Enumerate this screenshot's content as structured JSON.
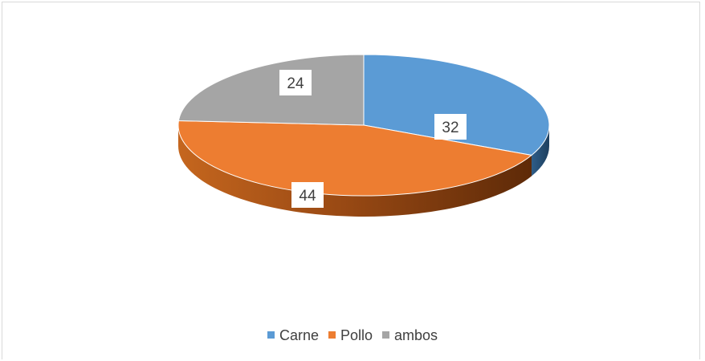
{
  "chart_data": {
    "type": "pie",
    "title": "",
    "categories": [
      "Carne",
      "Pollo",
      "ambos"
    ],
    "values": [
      32,
      44,
      24
    ],
    "colors": [
      "#5B9BD5",
      "#ED7D31",
      "#A5A5A5"
    ],
    "legend_position": "bottom",
    "style": "3d"
  }
}
